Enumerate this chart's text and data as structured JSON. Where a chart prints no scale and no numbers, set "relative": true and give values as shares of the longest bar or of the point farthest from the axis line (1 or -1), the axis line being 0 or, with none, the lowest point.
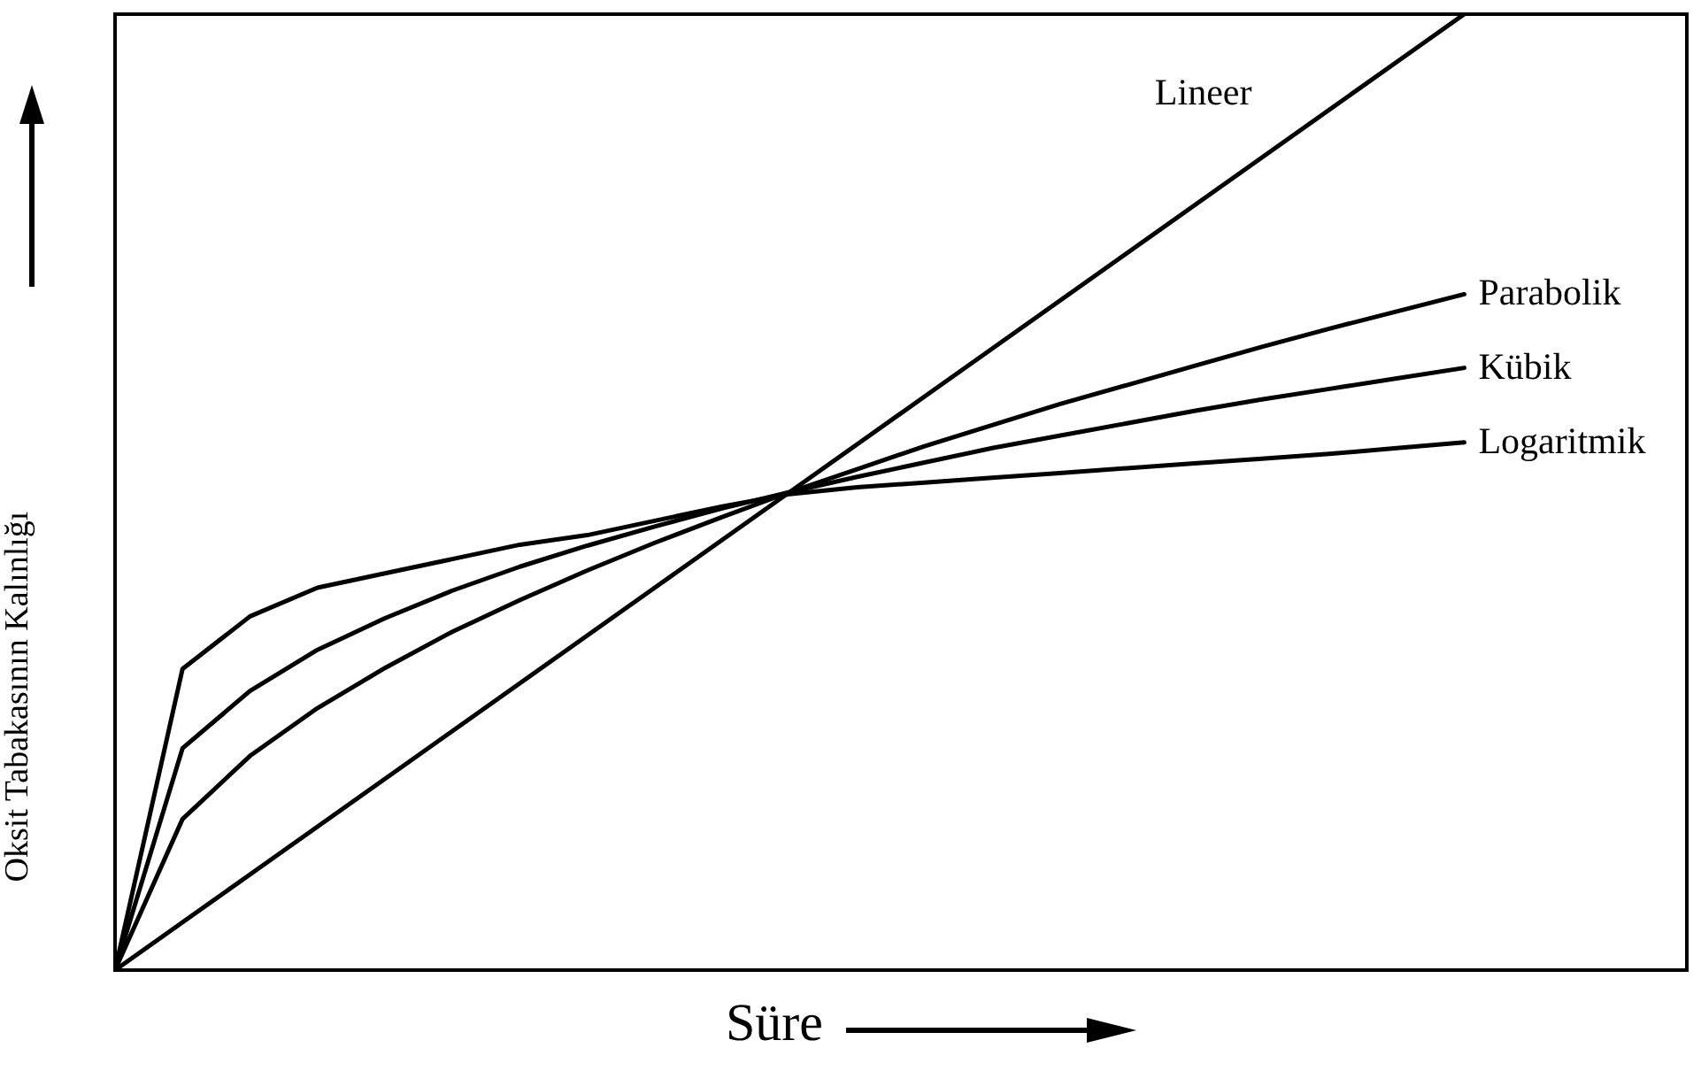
{
  "chart_data": {
    "type": "line",
    "relative": true,
    "xlabel": "Süre",
    "ylabel": "Oksit Tabakasının Kalınlığı",
    "grid": false,
    "marker": "none",
    "line_style": "solid",
    "categories": [
      null,
      null,
      null,
      null,
      null,
      null,
      null,
      null,
      null,
      null,
      null,
      null,
      null,
      null,
      null,
      null,
      null,
      null,
      null,
      null,
      null
    ],
    "series": [
      {
        "name": "Lineer",
        "color": "#000000",
        "values": [
          0,
          0.05,
          0.1,
          0.15,
          0.2,
          0.25,
          0.3,
          0.35,
          0.4,
          0.45,
          0.5,
          0.55,
          0.6,
          0.65,
          0.7,
          0.75,
          0.8,
          0.85,
          0.9,
          0.95,
          1
        ]
      },
      {
        "name": "Parabolik",
        "color": "#000000",
        "values": [
          0,
          0.158,
          0.224,
          0.274,
          0.316,
          0.354,
          0.387,
          0.418,
          0.447,
          0.474,
          0.5,
          0.524,
          0.548,
          0.57,
          0.592,
          0.612,
          0.632,
          0.652,
          0.671,
          0.689,
          0.707
        ]
      },
      {
        "name": "Kübik",
        "color": "#000000",
        "values": [
          0,
          0.232,
          0.292,
          0.335,
          0.368,
          0.397,
          0.422,
          0.444,
          0.464,
          0.483,
          0.5,
          0.516,
          0.531,
          0.546,
          0.559,
          0.572,
          0.585,
          0.597,
          0.608,
          0.619,
          0.63
        ]
      },
      {
        "name": "Logaritmik",
        "color": "#000000",
        "values": [
          0,
          0.315,
          0.37,
          0.4,
          0.415,
          0.43,
          0.445,
          0.455,
          0.47,
          0.485,
          0.498,
          0.505,
          0.51,
          0.515,
          0.52,
          0.525,
          0.53,
          0.535,
          0.54,
          0.546,
          0.552
        ]
      }
    ]
  }
}
